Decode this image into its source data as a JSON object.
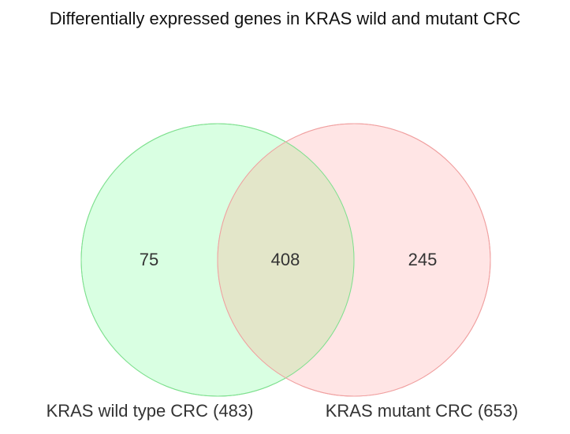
{
  "title": "Differentially expressed genes in KRAS wild and mutant CRC",
  "chart_data": {
    "type": "venn",
    "sets": [
      {
        "label": "KRAS wild type CRC (483)",
        "size": 483,
        "only": 75,
        "color": "#b3ffc6",
        "stroke": "#7fe08f"
      },
      {
        "label": "KRAS mutant CRC (653)",
        "size": 653,
        "only": 245,
        "color": "#ffcccc",
        "stroke": "#f0a0a0"
      }
    ],
    "intersection": 408,
    "intersection_color": "#e3e6c9"
  },
  "labels": {
    "only_a": "75",
    "both": "408",
    "only_b": "245"
  }
}
